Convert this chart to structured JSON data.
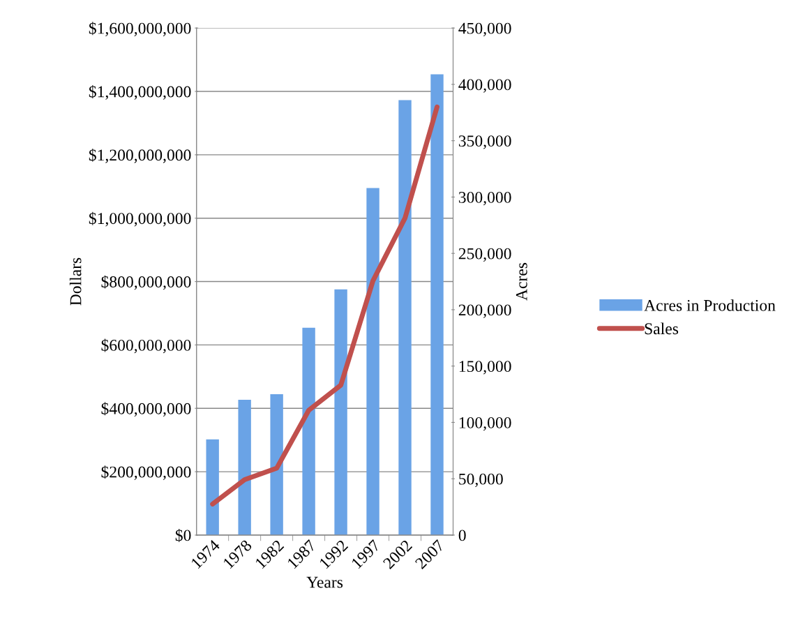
{
  "chart_data": {
    "type": "bar",
    "categories": [
      "1974",
      "1978",
      "1982",
      "1987",
      "1992",
      "1997",
      "2002",
      "2007"
    ],
    "xlabel": "Years",
    "ylabel": "Dollars",
    "y2label": "Acres",
    "series": [
      {
        "name": "Acres in Production",
        "axis": "y2",
        "color": "#6aa3e6",
        "values": [
          85000,
          120000,
          125000,
          184000,
          218000,
          308000,
          386000,
          409000
        ]
      },
      {
        "name": "Sales",
        "type": "line",
        "axis": "y",
        "color": "#c0504d",
        "values": [
          98000000,
          175000000,
          211000000,
          394000000,
          473000000,
          802000000,
          1000000000,
          1351000000
        ]
      }
    ],
    "ylim": [
      0,
      1600000000
    ],
    "yticks": [
      {
        "value": 0,
        "label": "$0"
      },
      {
        "value": 200000000,
        "label": "$200,000,000"
      },
      {
        "value": 400000000,
        "label": "$400,000,000"
      },
      {
        "value": 600000000,
        "label": "$600,000,000"
      },
      {
        "value": 800000000,
        "label": "$800,000,000"
      },
      {
        "value": 1000000000,
        "label": "$1,000,000,000"
      },
      {
        "value": 1200000000,
        "label": "$1,200,000,000"
      },
      {
        "value": 1400000000,
        "label": "$1,400,000,000"
      },
      {
        "value": 1600000000,
        "label": "$1,600,000,000"
      }
    ],
    "y2lim": [
      0,
      450000
    ],
    "y2ticks": [
      0,
      {
        "value": 50000,
        "label": "50,000"
      },
      {
        "value": 100000,
        "label": "100,000"
      },
      {
        "value": 150000,
        "label": "150,000"
      },
      {
        "value": 200000,
        "label": "200,000"
      },
      {
        "value": 250000,
        "label": "250,000"
      },
      {
        "value": 300000,
        "label": "300,000"
      },
      {
        "value": 350000,
        "label": "350,000"
      },
      {
        "value": 400000,
        "label": "400,000"
      },
      {
        "value": 450000,
        "label": "450,000"
      }
    ],
    "grid": "y",
    "legend": "right",
    "marker": "none",
    "line_style": "solid"
  }
}
